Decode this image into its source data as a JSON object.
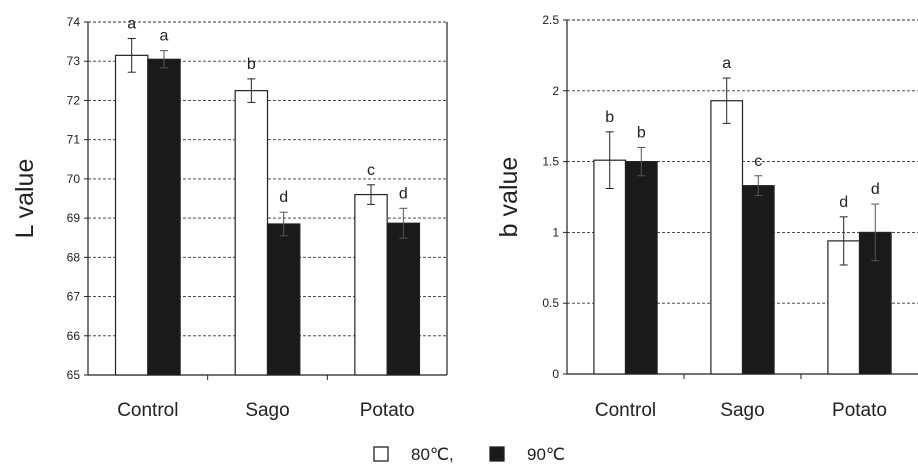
{
  "chart_data": [
    {
      "type": "bar",
      "ylabel": "L value",
      "ylim": [
        65,
        74
      ],
      "yticks": [
        65,
        66,
        67,
        68,
        69,
        70,
        71,
        72,
        73,
        74
      ],
      "grid": "horizontal dashed",
      "categories": [
        "Control",
        "Sago",
        "Potato"
      ],
      "series": [
        {
          "name": "80℃",
          "color": "#ffffff",
          "values": [
            73.15,
            72.25,
            69.6
          ],
          "errors": [
            0.43,
            0.3,
            0.25
          ],
          "labels": [
            "a",
            "b",
            "c"
          ]
        },
        {
          "name": "90℃",
          "color": "#1a1a1a",
          "values": [
            73.05,
            68.85,
            68.87
          ],
          "errors": [
            0.22,
            0.3,
            0.38
          ],
          "labels": [
            "a",
            "d",
            "d"
          ]
        }
      ]
    },
    {
      "type": "bar",
      "ylabel": "b value",
      "ylim": [
        0,
        2.5
      ],
      "yticks": [
        0,
        0.5,
        1,
        1.5,
        2,
        2.5
      ],
      "grid": "horizontal dashed",
      "categories": [
        "Control",
        "Sago",
        "Potato"
      ],
      "series": [
        {
          "name": "80℃",
          "color": "#ffffff",
          "values": [
            1.51,
            1.93,
            0.94
          ],
          "errors": [
            0.2,
            0.16,
            0.17
          ],
          "labels": [
            "b",
            "a",
            "d"
          ]
        },
        {
          "name": "90℃",
          "color": "#1a1a1a",
          "values": [
            1.5,
            1.33,
            1.0
          ],
          "errors": [
            0.1,
            0.07,
            0.2
          ],
          "labels": [
            "b",
            "c",
            "d"
          ]
        }
      ]
    }
  ],
  "legend": {
    "items": [
      {
        "label": "80℃,",
        "color": "#ffffff"
      },
      {
        "label": "90℃",
        "color": "#1a1a1a"
      }
    ]
  }
}
